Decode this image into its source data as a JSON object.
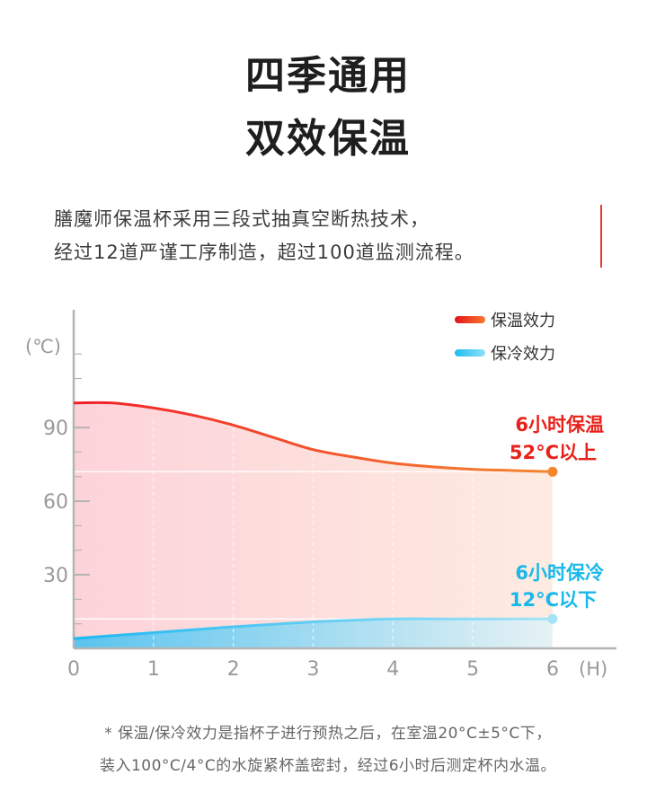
{
  "heading": {
    "line1": "四季通用",
    "line2": "双效保温"
  },
  "intro": {
    "line1": "膳魔师保温杯采用三段式抽真空断热技术，",
    "line2": "经过12道严谨工序制造，超过100道监测流程。"
  },
  "footnote": {
    "line1": "* 保温/保冷效力是指杯子进行预热之后，在室温20°C±5°C下，",
    "line2": "装入100°C/4°C的水旋紧杯盖密封，经过6小时后测定杯内水温。"
  },
  "colors": {
    "warm": "#f0401e",
    "warm_end": "#f5862e",
    "cool": "#1ebcf0",
    "accent_red": "#e53935",
    "warm_label": "#e8221a",
    "cool_label": "#19b8ea"
  },
  "chart_data": {
    "type": "area",
    "y_unit": "(℃)",
    "x_unit": "(H)",
    "x_ticks": [
      0,
      1,
      2,
      3,
      4,
      5,
      6
    ],
    "y_ticks": [
      30,
      60,
      90
    ],
    "xlim": [
      0,
      6.8
    ],
    "ylim": [
      0,
      138
    ],
    "grid": false,
    "legend_position": "top-right",
    "series": [
      {
        "name": "保温效力",
        "x": [
          0,
          0.5,
          1,
          1.5,
          2,
          2.5,
          3,
          3.5,
          4,
          4.5,
          5,
          5.5,
          6
        ],
        "y": [
          100,
          100,
          98,
          95,
          91,
          86,
          81,
          78,
          75.5,
          74,
          73,
          72.5,
          72
        ]
      },
      {
        "name": "保冷效力",
        "x": [
          0,
          0.5,
          1,
          1.5,
          2,
          2.5,
          3,
          3.5,
          4,
          4.5,
          5,
          5.5,
          6
        ],
        "y": [
          4,
          5.2,
          6.4,
          7.6,
          8.8,
          9.8,
          10.8,
          11.5,
          12,
          12,
          12,
          12,
          12
        ]
      }
    ],
    "annotations": [
      {
        "series": "保温效力",
        "line1": "6小时保温",
        "line2": "52°C以上"
      },
      {
        "series": "保冷效力",
        "line1": "6小时保冷",
        "line2": "12°C以下"
      }
    ]
  }
}
